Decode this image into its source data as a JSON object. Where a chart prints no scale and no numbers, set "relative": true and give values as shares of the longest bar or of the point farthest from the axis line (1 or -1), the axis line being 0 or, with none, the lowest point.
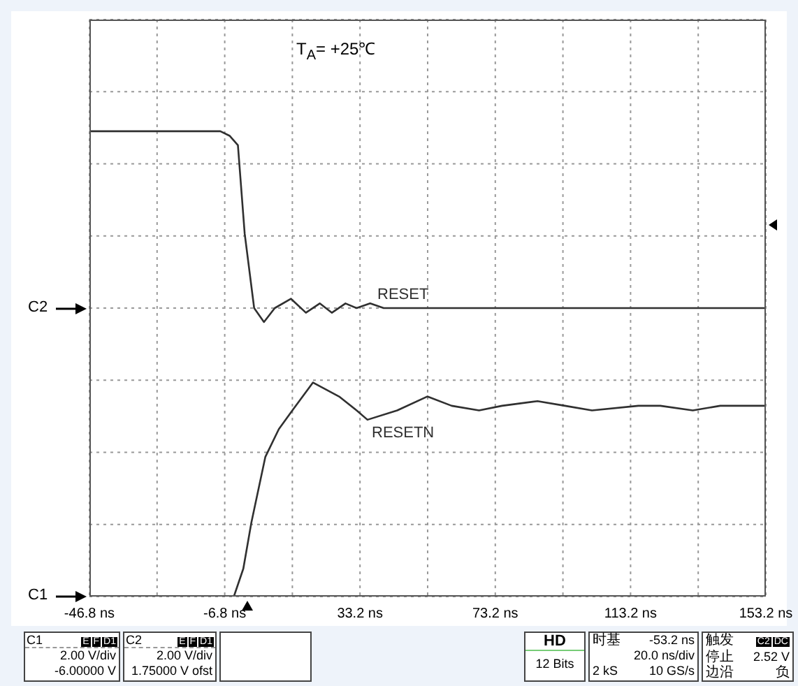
{
  "chart_data": {
    "type": "line",
    "relative": true,
    "grid": true,
    "xlim": [
      -46.8,
      153.2
    ],
    "xticks": [
      {
        "value": -46.8,
        "label": "-46.8 ns"
      },
      {
        "value": -26.8,
        "label": null
      },
      {
        "value": -6.8,
        "label": "-6.8 ns"
      },
      {
        "value": 13.2,
        "label": null
      },
      {
        "value": 33.2,
        "label": "33.2 ns"
      },
      {
        "value": 53.2,
        "label": null
      },
      {
        "value": 73.2,
        "label": "73.2 ns"
      },
      {
        "value": 93.2,
        "label": null
      },
      {
        "value": 113.2,
        "label": "113.2 ns"
      },
      {
        "value": 133.2,
        "label": null
      },
      {
        "value": 153.2,
        "label": "153.2 ns"
      }
    ],
    "series": [
      {
        "name": "RESET",
        "color": "#303030",
        "x": [
          -46.8,
          -27.1,
          -20.2,
          -8.1,
          -5.3,
          -2.9,
          -0.9,
          1.9,
          4.8,
          8.0,
          12.8,
          17.2,
          21.3,
          24.9,
          28.9,
          32.2,
          36.2,
          40.2,
          44.2,
          48.3,
          52.3,
          68.4,
          88.5,
          108.7,
          128.8,
          153.2
        ],
        "values": [
          1.0,
          1.0,
          1.0,
          1.0,
          0.99,
          0.97,
          0.78,
          0.62,
          0.59,
          0.62,
          0.64,
          0.61,
          0.63,
          0.61,
          0.63,
          0.62,
          0.63,
          0.62,
          0.62,
          0.62,
          0.62,
          0.62,
          0.62,
          0.62,
          0.62,
          0.62
        ]
      },
      {
        "name": "RESETN",
        "color": "#303030",
        "x": [
          -46.8,
          -4.1,
          -1.3,
          1.1,
          5.2,
          9.2,
          13.2,
          19.3,
          27.0,
          32.2,
          35.4,
          44.2,
          53.1,
          60.3,
          68.4,
          75.2,
          85.7,
          93.8,
          101.8,
          115.5,
          122.0,
          131.6,
          139.7,
          148.2,
          153.2
        ],
        "values": [
          0,
          0,
          0.06,
          0.16,
          0.3,
          0.36,
          0.4,
          0.46,
          0.43,
          0.4,
          0.38,
          0.4,
          0.43,
          0.41,
          0.4,
          0.41,
          0.42,
          0.41,
          0.4,
          0.41,
          0.41,
          0.4,
          0.41,
          0.41,
          0.41
        ]
      }
    ],
    "annotations": [
      "T$_{A}$= +25℃",
      "C2",
      "C1",
      "C1",
      "E",
      "F",
      "D1",
      "2.00 V/div",
      "-6.00000 V",
      "C2",
      "E",
      "F",
      "D1",
      "2.00 V/div",
      "1.75000 V ofst",
      "HD",
      "12 Bits",
      "时基",
      "-53.2 ns",
      "20.0 ns/div",
      "2 kS",
      "10 GS/s",
      "触发",
      "C2",
      "DC",
      "停止",
      "2.52 V",
      "边沿",
      "负"
    ]
  }
}
